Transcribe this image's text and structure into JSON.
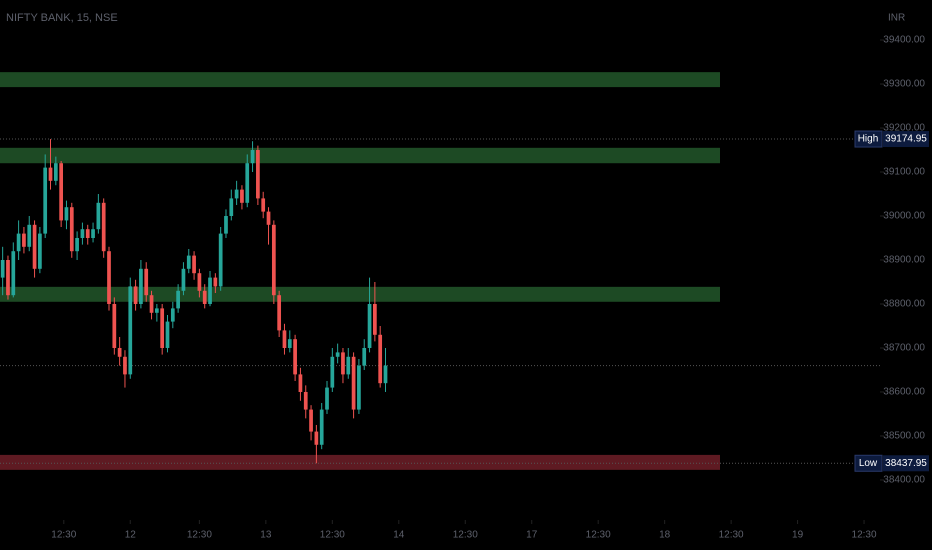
{
  "chart_data": {
    "type": "candlestick",
    "title": "NIFTY BANK, 15, NSE",
    "currency": "INR",
    "up_color": "#26a69a",
    "down_color": "#ef5350",
    "ylim": [
      38309,
      39491
    ],
    "yticks": [
      {
        "value": 38400,
        "label": "38400.00"
      },
      {
        "value": 38500,
        "label": "38500.00"
      },
      {
        "value": 38600,
        "label": "38600.00"
      },
      {
        "value": 38700,
        "label": "38700.00"
      },
      {
        "value": 38800,
        "label": "38800.00"
      },
      {
        "value": 38900,
        "label": "38900.00"
      },
      {
        "value": 39000,
        "label": "39000.00"
      },
      {
        "value": 39100,
        "label": "39100.00"
      },
      {
        "value": 39200,
        "label": "39200.00"
      },
      {
        "value": 39300,
        "label": "39300.00"
      },
      {
        "value": 39400,
        "label": "39400.00"
      }
    ],
    "xlim": [
      -0.5,
      165
    ],
    "xticks": [
      {
        "value": 11.5,
        "label": "12:30"
      },
      {
        "value": 24,
        "label": "12"
      },
      {
        "value": 37,
        "label": "12:30"
      },
      {
        "value": 49.5,
        "label": "13"
      },
      {
        "value": 62,
        "label": "12:30"
      },
      {
        "value": 74.5,
        "label": "14"
      },
      {
        "value": 87,
        "label": "12:30"
      },
      {
        "value": 99.5,
        "label": "17"
      },
      {
        "value": 112,
        "label": "12:30"
      },
      {
        "value": 124.5,
        "label": "18"
      },
      {
        "value": 137,
        "label": "12:30"
      },
      {
        "value": 149.5,
        "label": "19"
      },
      {
        "value": 162,
        "label": "12:30"
      }
    ],
    "open": [
      38860,
      38900,
      38820,
      38920,
      38960,
      38930,
      38980,
      38880,
      38960,
      39110,
      39080,
      39120,
      38990,
      39020,
      38920,
      38950,
      38970,
      38950,
      38970,
      39030,
      38920,
      38800,
      38700,
      38680,
      38640,
      38840,
      38800,
      38880,
      38820,
      38780,
      38790,
      38700,
      38760,
      38790,
      38830,
      38880,
      38910,
      38870,
      38830,
      38800,
      38860,
      38840,
      38960,
      39000,
      39040,
      39060,
      39030,
      39120,
      39150,
      39040,
      39010,
      38980,
      38820,
      38740,
      38700,
      38720,
      38640,
      38600,
      38560,
      38510,
      38480,
      38560,
      38610,
      38680,
      38690,
      38640,
      38680,
      38560,
      38660,
      38700,
      38800,
      38730,
      38620
    ],
    "high": [
      38930,
      38910,
      38940,
      38990,
      38975,
      39000,
      38990,
      38975,
      39140,
      39174.95,
      39135,
      39125,
      39035,
      39030,
      38965,
      38985,
      38980,
      38985,
      39050,
      39040,
      38930,
      38815,
      38725,
      38695,
      38860,
      38855,
      38900,
      38895,
      38830,
      38800,
      38800,
      38775,
      38805,
      38845,
      38895,
      38925,
      38920,
      38880,
      38845,
      38875,
      38870,
      38975,
      39015,
      39060,
      39080,
      39070,
      39140,
      39170,
      39160,
      39055,
      39020,
      38990,
      38830,
      38755,
      38740,
      38730,
      38655,
      38615,
      38570,
      38525,
      38575,
      38625,
      38700,
      38710,
      38700,
      38700,
      38690,
      38675,
      38720,
      38860,
      38850,
      38750,
      38700
    ],
    "low": [
      38820,
      38810,
      38815,
      38900,
      38915,
      38920,
      38860,
      38870,
      38950,
      39060,
      39070,
      38975,
      38970,
      38905,
      38900,
      38935,
      38935,
      38940,
      38960,
      38905,
      38785,
      38685,
      38660,
      38610,
      38630,
      38785,
      38790,
      38805,
      38765,
      38760,
      38685,
      38690,
      38745,
      38780,
      38820,
      38870,
      38855,
      38815,
      38790,
      38795,
      38825,
      38830,
      38950,
      38990,
      39025,
      39015,
      39020,
      39100,
      39025,
      38995,
      38935,
      38800,
      38725,
      38685,
      38690,
      38625,
      38580,
      38540,
      38490,
      38437.95,
      38470,
      38550,
      38600,
      38665,
      38620,
      38630,
      38540,
      38550,
      38650,
      38690,
      38715,
      38610,
      38600
    ],
    "close": [
      38900,
      38820,
      38920,
      38960,
      38930,
      38980,
      38880,
      38960,
      39110,
      39080,
      39120,
      38990,
      39020,
      38920,
      38950,
      38970,
      38950,
      38970,
      39030,
      38920,
      38800,
      38700,
      38680,
      38640,
      38840,
      38800,
      38880,
      38820,
      38780,
      38790,
      38700,
      38760,
      38790,
      38830,
      38880,
      38910,
      38870,
      38830,
      38800,
      38860,
      38840,
      38960,
      39000,
      39040,
      39060,
      39030,
      39120,
      39150,
      39040,
      39010,
      38980,
      38820,
      38740,
      38700,
      38720,
      38640,
      38600,
      38560,
      38510,
      38480,
      38560,
      38610,
      38680,
      38690,
      38640,
      38680,
      38560,
      38660,
      38700,
      38800,
      38730,
      38620,
      38660
    ],
    "zones": [
      {
        "from": 39293,
        "to": 39327,
        "color": "#1d4a24"
      },
      {
        "from": 39120,
        "to": 39155,
        "color": "#1d4a24"
      },
      {
        "from": 38805,
        "to": 38839,
        "color": "#1d4a24"
      },
      {
        "from": 38423,
        "to": 38457,
        "color": "#5e1a22"
      }
    ],
    "high_marker": {
      "label": "High",
      "value": 39174.95
    },
    "low_marker": {
      "label": "Low",
      "value": 38437.95
    }
  }
}
